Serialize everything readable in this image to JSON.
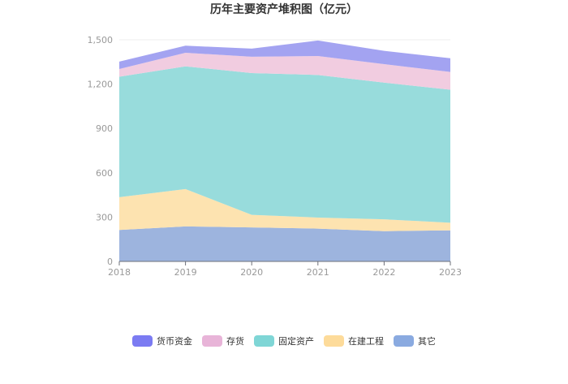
{
  "chart_data": {
    "type": "area",
    "stacked": true,
    "title": "历年主要资产堆积图（亿元）",
    "xlabel": "",
    "ylabel": "",
    "x": [
      "2018",
      "2019",
      "2020",
      "2021",
      "2022",
      "2023"
    ],
    "ylim": [
      0,
      1500
    ],
    "yticks": [
      "0",
      "300",
      "600",
      "900",
      "1,200",
      "1,500"
    ],
    "grid": true,
    "legend_position": "bottom",
    "series": [
      {
        "name": "其它",
        "color": "#9db4de",
        "values": [
          213,
          237,
          230,
          222,
          205,
          210
        ]
      },
      {
        "name": "在建工程",
        "color": "#fde3b0",
        "values": [
          222,
          253,
          85,
          75,
          80,
          52
        ]
      },
      {
        "name": "固定资产",
        "color": "#98dcdc",
        "values": [
          815,
          830,
          960,
          965,
          925,
          900
        ]
      },
      {
        "name": "存货",
        "color": "#f1cce0",
        "values": [
          52,
          92,
          110,
          128,
          125,
          120
        ]
      },
      {
        "name": "货币资金",
        "color": "#a3a3f1",
        "values": [
          50,
          48,
          55,
          105,
          90,
          93
        ]
      }
    ],
    "legend_colors": {
      "货币资金": "#7b7bf2",
      "存货": "#e8b4d8",
      "固定资产": "#7fd6d6",
      "在建工程": "#fddb9a",
      "其它": "#8aaae0"
    },
    "legend_order": [
      "货币资金",
      "存货",
      "固定资产",
      "在建工程",
      "其它"
    ]
  }
}
